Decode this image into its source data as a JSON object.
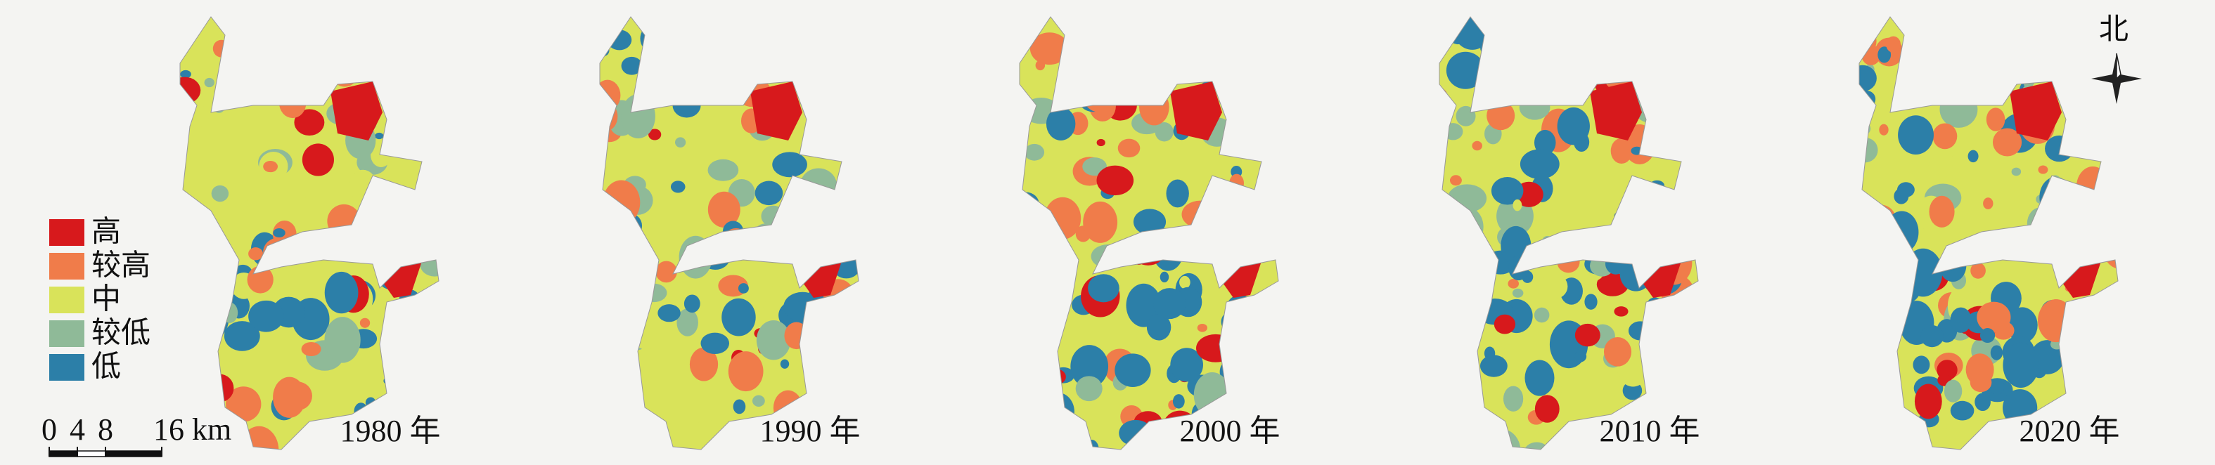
{
  "legend": {
    "items": [
      {
        "label": "高",
        "color": "#d7191c"
      },
      {
        "label": "较高",
        "color": "#f07c4a"
      },
      {
        "label": "中",
        "color": "#d9e35a"
      },
      {
        "label": "较低",
        "color": "#8fba98"
      },
      {
        "label": "低",
        "color": "#2c7fa8"
      }
    ]
  },
  "panels": [
    {
      "year": "1980 年"
    },
    {
      "year": "1990 年"
    },
    {
      "year": "2000 年"
    },
    {
      "year": "2010 年"
    },
    {
      "year": "2020 年"
    }
  ],
  "scale_bar": {
    "ticks": [
      0,
      4,
      8,
      {
        "value": 16,
        "label": "16 km"
      }
    ]
  },
  "north_label": "北"
}
